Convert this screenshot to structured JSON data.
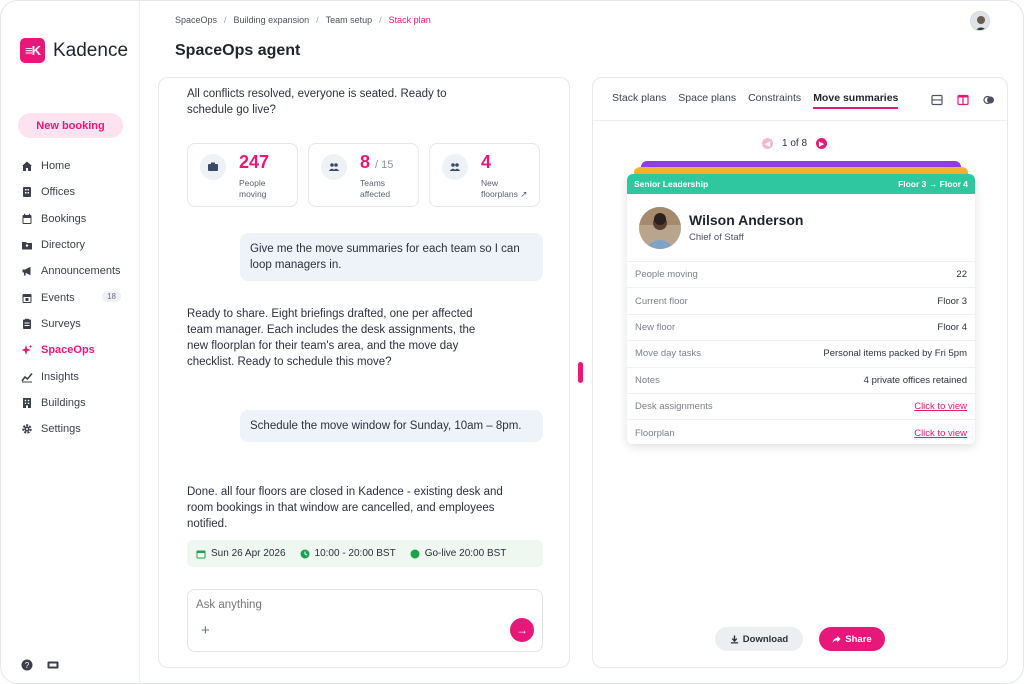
{
  "brand": {
    "name": "Kadence",
    "mark": "K",
    "accent": "#e8187a"
  },
  "sidebar": {
    "new_booking": "New booking",
    "items": [
      {
        "label": "Home",
        "icon": "home-icon"
      },
      {
        "label": "Offices",
        "icon": "offices-icon"
      },
      {
        "label": "Bookings",
        "icon": "calendar-icon"
      },
      {
        "label": "Directory",
        "icon": "directory-icon"
      },
      {
        "label": "Announcements",
        "icon": "megaphone-icon"
      },
      {
        "label": "Events",
        "icon": "events-icon",
        "badge": "18"
      },
      {
        "label": "Surveys",
        "icon": "clipboard-icon"
      },
      {
        "label": "SpaceOps",
        "icon": "spaceops-icon",
        "active": true
      },
      {
        "label": "Insights",
        "icon": "chart-icon"
      },
      {
        "label": "Buildings",
        "icon": "building-icon"
      },
      {
        "label": "Settings",
        "icon": "gear-icon"
      }
    ]
  },
  "header": {
    "breadcrumb": [
      "SpaceOps",
      "Building expansion",
      "Team setup",
      "Stack plan"
    ],
    "title": "SpaceOps agent"
  },
  "chat": {
    "msg1": "All conflicts resolved, everyone is seated. Ready to schedule go live?",
    "stats": [
      {
        "value": "247",
        "suffix": "",
        "label": "People moving"
      },
      {
        "value": "8",
        "suffix": "/ 15",
        "label": "Teams affected"
      },
      {
        "value": "4",
        "suffix": "",
        "label": "New floorplans ↗"
      }
    ],
    "user1": "Give me the move summaries for each team so I can loop managers in.",
    "msg2": "Ready to share. Eight briefings drafted, one per affected team manager. Each includes the desk assignments, the new floorplan for their team's area, and the move day checklist. Ready to schedule this move?",
    "user2": "Schedule the move window for Sunday, 10am – 8pm.",
    "msg3": "Done. all four floors are closed in Kadence - existing desk and room bookings in that window are cancelled, and employees notified.",
    "info": {
      "date": "Sun 26 Apr 2026",
      "time": "10:00 - 20:00 BST",
      "golive": "Go-live 20:00 BST"
    },
    "composer_placeholder": "Ask anything"
  },
  "panel": {
    "tabs": [
      "Stack plans",
      "Space plans",
      "Constraints",
      "Move summaries"
    ],
    "active_tab": "Move summaries",
    "pager": "1 of 8",
    "card": {
      "team": "Senior Leadership",
      "from_floor": "Floor 3",
      "to_floor": "Floor 4",
      "name": "Wilson Anderson",
      "role": "Chief of Staff",
      "rows": [
        {
          "label": "People moving",
          "value": "22"
        },
        {
          "label": "Current floor",
          "value": "Floor 3"
        },
        {
          "label": "New floor",
          "value": "Floor 4"
        },
        {
          "label": "Move day tasks",
          "value": "Personal items packed by Fri 5pm"
        },
        {
          "label": "Notes",
          "value": "4 private offices retained"
        },
        {
          "label": "Desk assignments",
          "value": "Click to view",
          "link": true
        },
        {
          "label": "Floorplan",
          "value": "Click to view",
          "link": true
        }
      ]
    },
    "download": "Download",
    "share": "Share"
  }
}
